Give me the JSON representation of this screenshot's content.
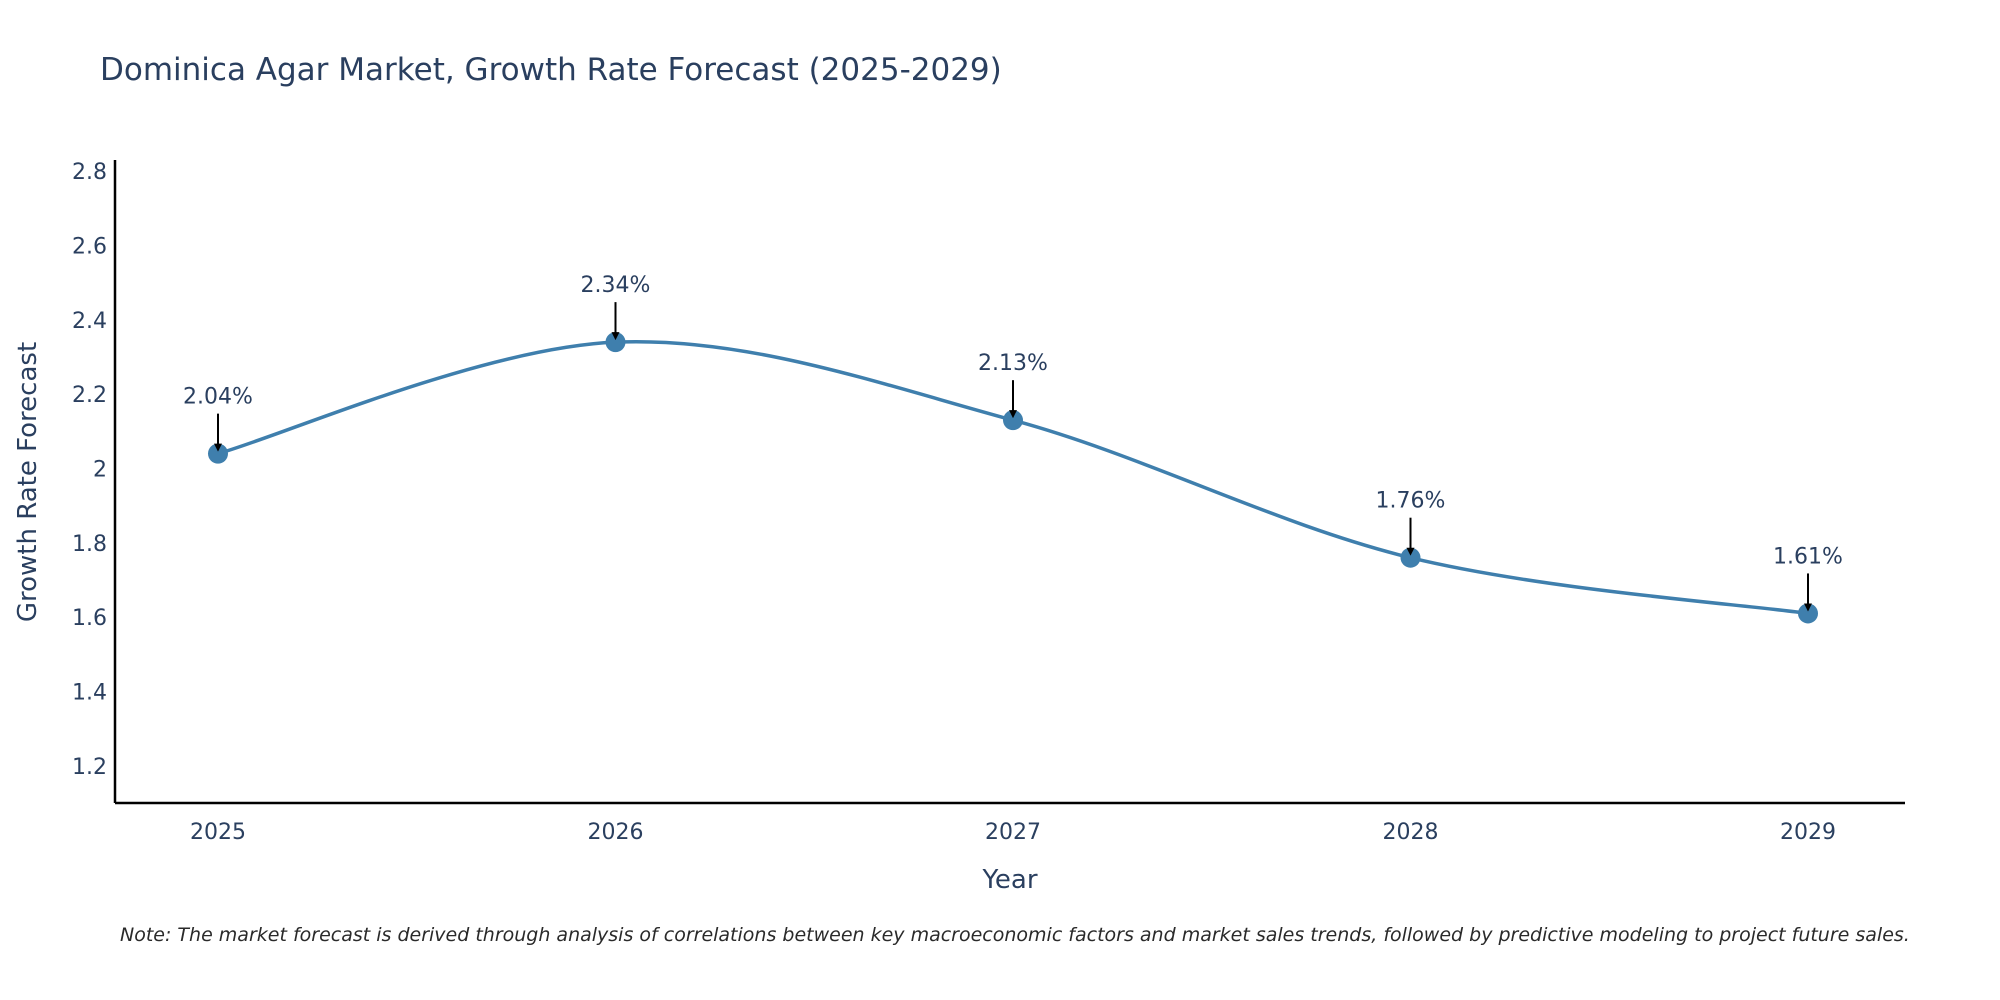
{
  "chart_data": {
    "type": "line",
    "title": "Dominica Agar Market, Growth Rate Forecast (2025-2029)",
    "xlabel": "Year",
    "ylabel": "Growth Rate Forecast",
    "categories": [
      "2025",
      "2026",
      "2027",
      "2028",
      "2029"
    ],
    "series": [
      {
        "name": "Growth Rate Forecast",
        "values": [
          2.04,
          2.34,
          2.13,
          1.76,
          1.61
        ],
        "labels": [
          "2.04%",
          "2.34%",
          "2.13%",
          "1.76%",
          "1.61%"
        ],
        "color": "#3f7fad"
      }
    ],
    "ylim": [
      1.1,
      2.83
    ],
    "yticks": [
      1.2,
      1.4,
      1.6,
      1.8,
      2,
      2.2,
      2.4,
      2.6,
      2.8
    ],
    "ytick_labels": [
      "1.2",
      "1.4",
      "1.6",
      "1.8",
      "2",
      "2.2",
      "2.4",
      "2.6",
      "2.8"
    ],
    "grid": false,
    "line_shape": "spline",
    "annotations": "arrows pointing to each data point with percentage label",
    "note": "Note: The market forecast is derived through analysis of correlations between key macroeconomic factors and market sales trends, followed by predictive modeling to project future sales."
  },
  "colors": {
    "line": "#3f7fad",
    "marker": "#3f7fad",
    "axis": "#000000",
    "text": "#2a3f5f",
    "arrow": "#000000"
  }
}
